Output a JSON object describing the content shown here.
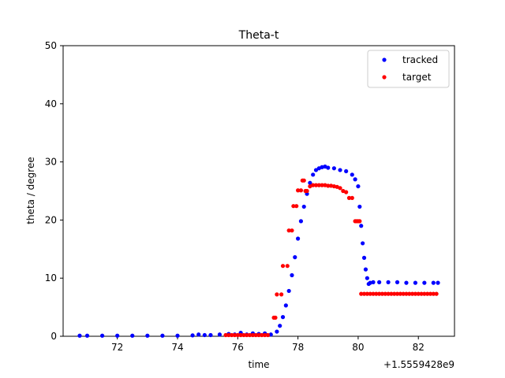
{
  "chart_data": {
    "type": "scatter",
    "title": "Theta-t",
    "xlabel": "time",
    "ylabel": "theta / degree",
    "x_offset_label": "+1.5559428e9",
    "xlim": [
      70.2,
      83.2
    ],
    "ylim": [
      0,
      50
    ],
    "xticks": [
      72,
      74,
      76,
      78,
      80,
      82
    ],
    "yticks": [
      0,
      10,
      20,
      30,
      40,
      50
    ],
    "grid": false,
    "legend": "top-right",
    "series": [
      {
        "name": "tracked",
        "color": "#0000ff",
        "x": [
          70.75,
          71.0,
          71.5,
          72.0,
          72.5,
          73.0,
          73.5,
          74.0,
          74.5,
          74.7,
          74.9,
          75.1,
          75.4,
          75.7,
          75.9,
          76.1,
          76.3,
          76.5,
          76.7,
          76.9,
          77.1,
          77.3,
          77.4,
          77.5,
          77.6,
          77.7,
          77.8,
          77.9,
          78.0,
          78.1,
          78.2,
          78.3,
          78.4,
          78.5,
          78.6,
          78.7,
          78.8,
          78.9,
          79.0,
          79.2,
          79.4,
          79.6,
          79.8,
          79.9,
          80.0,
          80.05,
          80.1,
          80.15,
          80.2,
          80.25,
          80.3,
          80.35,
          80.4,
          80.5,
          80.7,
          81.0,
          81.3,
          81.6,
          81.9,
          82.2,
          82.5,
          82.65
        ],
        "y": [
          0.1,
          0.1,
          0.1,
          0.1,
          0.1,
          0.1,
          0.1,
          0.1,
          0.15,
          0.3,
          0.2,
          0.2,
          0.3,
          0.4,
          0.3,
          0.6,
          0.3,
          0.5,
          0.4,
          0.5,
          0.3,
          0.8,
          1.8,
          3.3,
          5.3,
          7.8,
          10.5,
          13.6,
          16.8,
          19.8,
          22.3,
          24.5,
          26.4,
          27.8,
          28.6,
          28.9,
          29.1,
          29.2,
          29.0,
          28.9,
          28.6,
          28.4,
          27.8,
          27.0,
          25.8,
          22.3,
          19.0,
          16.0,
          13.5,
          11.5,
          10.0,
          9.0,
          9.2,
          9.3,
          9.3,
          9.3,
          9.3,
          9.2,
          9.2,
          9.2,
          9.2,
          9.2
        ]
      },
      {
        "name": "target",
        "color": "#ff0000",
        "x": [
          75.6,
          75.7,
          75.8,
          75.9,
          76.0,
          76.1,
          76.2,
          76.3,
          76.4,
          76.5,
          76.6,
          76.7,
          76.8,
          76.9,
          77.0,
          77.2,
          77.25,
          77.3,
          77.45,
          77.5,
          77.65,
          77.7,
          77.8,
          77.85,
          77.95,
          78.0,
          78.1,
          78.15,
          78.2,
          78.25,
          78.3,
          78.4,
          78.5,
          78.6,
          78.7,
          78.8,
          78.9,
          79.0,
          79.1,
          79.2,
          79.3,
          79.4,
          79.5,
          79.6,
          79.7,
          79.8,
          79.9,
          79.95,
          80.0,
          80.05,
          80.1,
          80.2,
          80.3,
          80.4,
          80.5,
          80.6,
          80.7,
          80.8,
          80.9,
          81.0,
          81.1,
          81.2,
          81.3,
          81.4,
          81.5,
          81.6,
          81.7,
          81.8,
          81.9,
          82.0,
          82.1,
          82.2,
          82.3,
          82.4,
          82.5,
          82.6
        ],
        "y": [
          0.2,
          0.2,
          0.2,
          0.2,
          0.2,
          0.2,
          0.2,
          0.2,
          0.2,
          0.2,
          0.2,
          0.2,
          0.2,
          0.2,
          0.2,
          3.2,
          3.2,
          7.2,
          7.2,
          12.1,
          12.1,
          18.2,
          18.2,
          22.4,
          22.4,
          25.1,
          25.1,
          26.8,
          26.8,
          25.0,
          25.0,
          25.8,
          26.0,
          26.0,
          26.0,
          26.0,
          26.0,
          25.9,
          25.9,
          25.8,
          25.7,
          25.5,
          25.0,
          24.8,
          23.8,
          23.8,
          19.8,
          19.8,
          19.8,
          19.8,
          7.3,
          7.3,
          7.3,
          7.3,
          7.3,
          7.3,
          7.3,
          7.3,
          7.3,
          7.3,
          7.3,
          7.3,
          7.3,
          7.3,
          7.3,
          7.3,
          7.3,
          7.3,
          7.3,
          7.3,
          7.3,
          7.3,
          7.3,
          7.3,
          7.3,
          7.3
        ]
      }
    ]
  }
}
